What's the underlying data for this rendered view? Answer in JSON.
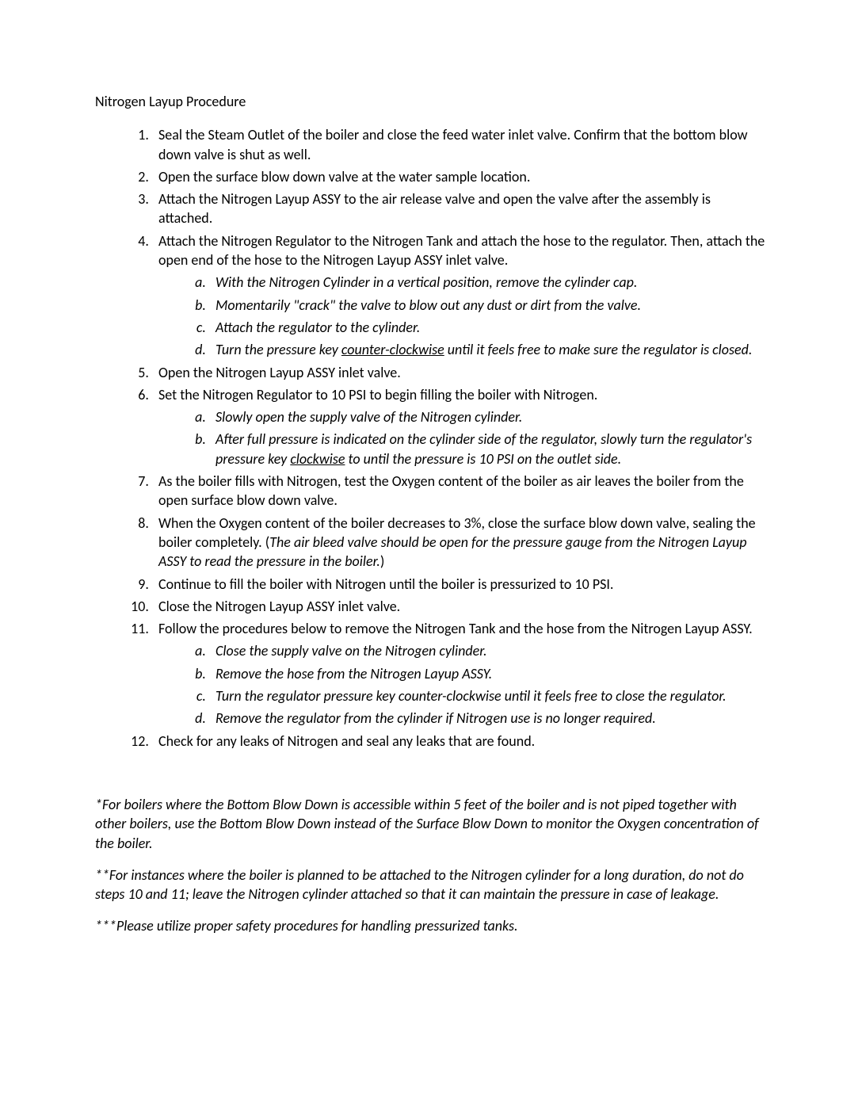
{
  "title": "Nitrogen Layup Procedure",
  "steps": [
    {
      "text": "Seal the Steam Outlet of the boiler and close the feed water inlet valve.  Confirm that the bottom blow down valve is shut as well."
    },
    {
      "text": "Open the surface blow down valve at the water sample location."
    },
    {
      "text": "Attach the Nitrogen Layup ASSY to the air release valve and open the valve after the assembly is attached."
    },
    {
      "text": "Attach the Nitrogen Regulator to the Nitrogen Tank and attach the hose to the regulator.  Then, attach the open end of the hose to the Nitrogen Layup ASSY inlet valve.",
      "sub": [
        "With the Nitrogen Cylinder in a vertical position, remove the cylinder cap.",
        "Momentarily \"crack\" the valve to blow out any dust or dirt from the valve.",
        "Attach the regulator to the cylinder.",
        "Turn the pressure key <span class=\"u\">counter-clockwise</span> until it feels free to make sure the regulator is closed."
      ]
    },
    {
      "text": "Open the Nitrogen Layup ASSY inlet valve."
    },
    {
      "text": "Set the Nitrogen Regulator to 10 PSI to begin filling the boiler with Nitrogen.",
      "sub": [
        "Slowly open the supply valve of the Nitrogen cylinder.",
        "After full pressure is indicated on the cylinder side of the regulator, slowly turn the regulator's pressure key <span class=\"u\">clockwise</span> to until the pressure is 10 PSI on the outlet side."
      ]
    },
    {
      "text": "As the boiler fills with Nitrogen, test the Oxygen content of the boiler as air leaves the boiler from the open surface blow down valve."
    },
    {
      "text": "When the Oxygen content of the boiler decreases to 3%, close the surface blow down valve, sealing the boiler completely. (<span class=\"ital\">The air bleed valve should be open for the pressure gauge from the Nitrogen Layup ASSY to read the pressure in the boiler.</span>)"
    },
    {
      "text": "Continue to fill the boiler with Nitrogen until the boiler is pressurized to 10 PSI."
    },
    {
      "text": "Close the Nitrogen Layup ASSY inlet valve."
    },
    {
      "text": "Follow the procedures below to remove the Nitrogen Tank and the hose from the Nitrogen Layup ASSY.",
      "sub": [
        "Close the supply valve on the Nitrogen cylinder.",
        "Remove the hose from the Nitrogen Layup ASSY.",
        "Turn the regulator pressure key counter-clockwise until it feels free to close the regulator.",
        "Remove the regulator from the cylinder if Nitrogen use is no longer required."
      ]
    },
    {
      "text": "Check for any leaks of Nitrogen and seal any leaks that are found."
    }
  ],
  "footnotes": [
    "*For boilers where the Bottom Blow Down is accessible within 5 feet of the boiler and is not piped together with other boilers, use the Bottom Blow Down instead of the Surface Blow Down to monitor the Oxygen concentration of the boiler.",
    "**For instances where the boiler is planned to be attached to the Nitrogen cylinder for a long duration, do not do steps 10 and 11; leave the Nitrogen cylinder attached so that it can maintain the pressure in case of leakage.",
    "***Please utilize proper safety procedures for handling pressurized tanks."
  ]
}
